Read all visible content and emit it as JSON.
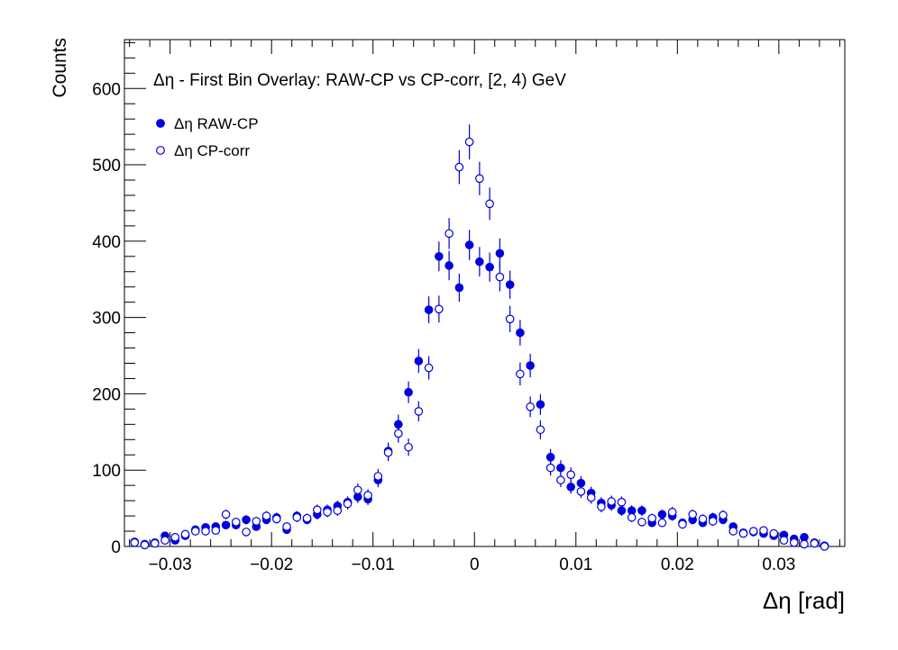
{
  "chart_data": {
    "type": "scatter",
    "title": "Δη  -  First Bin Overlay: RAW-CP vs CP-corr, [2, 4) GeV",
    "xlabel": "Δη  [rad]",
    "ylabel": "Counts",
    "xlim": [
      -0.0345,
      0.0365
    ],
    "ylim": [
      0,
      664
    ],
    "xticks": [
      -0.03,
      -0.02,
      -0.01,
      0,
      0.01,
      0.02,
      0.03
    ],
    "xtick_labels": [
      "−0.03",
      "−0.02",
      "−0.01",
      "0",
      "0.01",
      "0.02",
      "0.03"
    ],
    "yticks": [
      0,
      100,
      200,
      300,
      400,
      500,
      600
    ],
    "ytick_labels": [
      "0",
      "100",
      "200",
      "300",
      "400",
      "500",
      "600"
    ],
    "grid": false,
    "legend_placement": "top-left",
    "colors": {
      "marker": "#0000dd",
      "axis": "#000000"
    },
    "series": [
      {
        "name": "Δη RAW-CP",
        "marker": "filled-circle",
        "x": [
          -0.0335,
          -0.0325,
          -0.0315,
          -0.0305,
          -0.0295,
          -0.0285,
          -0.0275,
          -0.0265,
          -0.0255,
          -0.0245,
          -0.0235,
          -0.0225,
          -0.0215,
          -0.0205,
          -0.0195,
          -0.0185,
          -0.0175,
          -0.0165,
          -0.0155,
          -0.0145,
          -0.0135,
          -0.0125,
          -0.0115,
          -0.0105,
          -0.0095,
          -0.0085,
          -0.0075,
          -0.0065,
          -0.0055,
          -0.0045,
          -0.0035,
          -0.0025,
          -0.0015,
          -0.0005,
          0.0005,
          0.0015,
          0.0025,
          0.0035,
          0.0045,
          0.0055,
          0.0065,
          0.0075,
          0.0085,
          0.0095,
          0.0105,
          0.0115,
          0.0125,
          0.0135,
          0.0145,
          0.0155,
          0.0165,
          0.0175,
          0.0185,
          0.0195,
          0.0205,
          0.0215,
          0.0225,
          0.0235,
          0.0245,
          0.0255,
          0.0265,
          0.0275,
          0.0285,
          0.0295,
          0.0305,
          0.0315,
          0.0325,
          0.0335,
          0.0345
        ],
        "y": [
          6,
          3,
          5,
          14,
          8,
          14,
          22,
          25,
          26,
          28,
          28,
          35,
          26,
          35,
          38,
          22,
          40,
          35,
          42,
          48,
          53,
          58,
          65,
          62,
          87,
          125,
          160,
          202,
          243,
          310,
          380,
          368,
          339,
          395,
          373,
          366,
          384,
          343,
          280,
          237,
          186,
          117,
          103,
          78,
          83,
          70,
          57,
          54,
          47,
          47,
          47,
          31,
          42,
          40,
          31,
          35,
          31,
          38,
          35,
          26,
          18,
          19,
          17,
          14,
          15,
          10,
          12,
          5,
          1
        ],
        "err": [
          2.4,
          1.7,
          2.2,
          3.7,
          2.8,
          3.7,
          4.7,
          5,
          5.1,
          5.3,
          5.3,
          5.9,
          5.1,
          5.9,
          6.2,
          4.7,
          6.3,
          5.9,
          6.5,
          6.9,
          7.3,
          7.6,
          8.1,
          7.9,
          9.3,
          11.2,
          12.6,
          14.2,
          15.6,
          17.6,
          19.5,
          19.2,
          18.4,
          19.9,
          19.3,
          19.1,
          19.6,
          18.5,
          16.7,
          15.4,
          13.6,
          10.8,
          10.1,
          8.8,
          9.1,
          8.4,
          7.5,
          7.3,
          6.9,
          6.9,
          6.9,
          5.6,
          6.5,
          6.3,
          5.6,
          5.9,
          5.6,
          6.2,
          5.9,
          5.1,
          4.2,
          4.4,
          4.1,
          3.7,
          3.9,
          3.2,
          3.5,
          2.2,
          1
        ]
      },
      {
        "name": "Δη CP-corr",
        "marker": "open-circle",
        "x": [
          -0.0335,
          -0.0325,
          -0.0315,
          -0.0305,
          -0.0295,
          -0.0285,
          -0.0275,
          -0.0265,
          -0.0255,
          -0.0245,
          -0.0235,
          -0.0225,
          -0.0215,
          -0.0205,
          -0.0195,
          -0.0185,
          -0.0175,
          -0.0165,
          -0.0155,
          -0.0145,
          -0.0135,
          -0.0125,
          -0.0115,
          -0.0105,
          -0.0095,
          -0.0085,
          -0.0075,
          -0.0065,
          -0.0055,
          -0.0045,
          -0.0035,
          -0.0025,
          -0.0015,
          -0.0005,
          0.0005,
          0.0015,
          0.0025,
          0.0035,
          0.0045,
          0.0055,
          0.0065,
          0.0075,
          0.0085,
          0.0095,
          0.0105,
          0.0115,
          0.0125,
          0.0135,
          0.0145,
          0.0155,
          0.0165,
          0.0175,
          0.0185,
          0.0195,
          0.0205,
          0.0215,
          0.0225,
          0.0235,
          0.0245,
          0.0255,
          0.0265,
          0.0275,
          0.0285,
          0.0295,
          0.0305,
          0.0315,
          0.0325,
          0.0335,
          0.0345
        ],
        "y": [
          5,
          2,
          4,
          8,
          12,
          16,
          20,
          20,
          21,
          42,
          32,
          19,
          33,
          40,
          36,
          26,
          38,
          37,
          48,
          45,
          47,
          56,
          74,
          67,
          92,
          123,
          148,
          130,
          177,
          234,
          311,
          410,
          497,
          530,
          482,
          449,
          353,
          298,
          226,
          183,
          153,
          103,
          87,
          94,
          72,
          64,
          52,
          59,
          58,
          38,
          32,
          37,
          31,
          45,
          29,
          42,
          36,
          33,
          41,
          20,
          17,
          20,
          21,
          17,
          8,
          5,
          3,
          4,
          0
        ]
      }
    ]
  }
}
